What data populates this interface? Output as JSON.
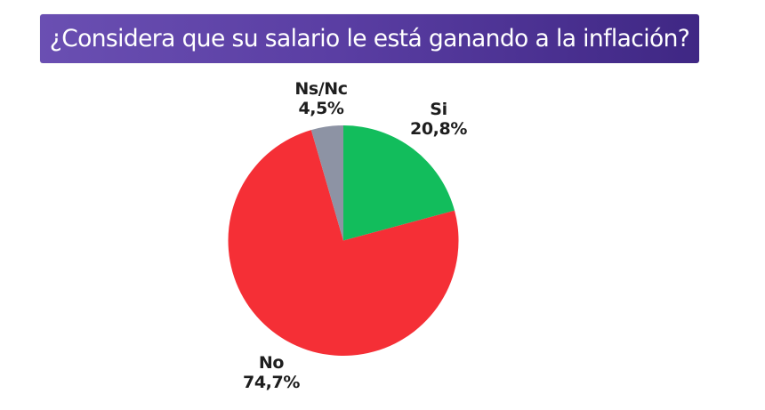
{
  "header": {
    "title": "¿Considera que su salario le está ganando a la inflación?"
  },
  "colors": {
    "title_gradient_start": "#6a4fb2",
    "title_gradient_end": "#3f2784",
    "si": "#12bd5c",
    "no": "#f52f36",
    "nsnc": "#8d93a4"
  },
  "labels": {
    "si": {
      "name": "Si",
      "value": "20,8%"
    },
    "no": {
      "name": "No",
      "value": "74,7%"
    },
    "nsnc": {
      "name": "Ns/Nc",
      "value": "4,5%"
    }
  },
  "chart_data": {
    "type": "pie",
    "title": "¿Considera que su salario le está ganando a la inflación?",
    "categories": [
      "Si",
      "No",
      "Ns/Nc"
    ],
    "values": [
      20.8,
      74.7,
      4.5
    ],
    "value_labels": [
      "20,8%",
      "74,7%",
      "4,5%"
    ],
    "colors": [
      "#12bd5c",
      "#f52f36",
      "#8d93a4"
    ],
    "start_angle_deg": 0,
    "direction": "clockwise",
    "legend": "none",
    "labels_position": "outside"
  }
}
